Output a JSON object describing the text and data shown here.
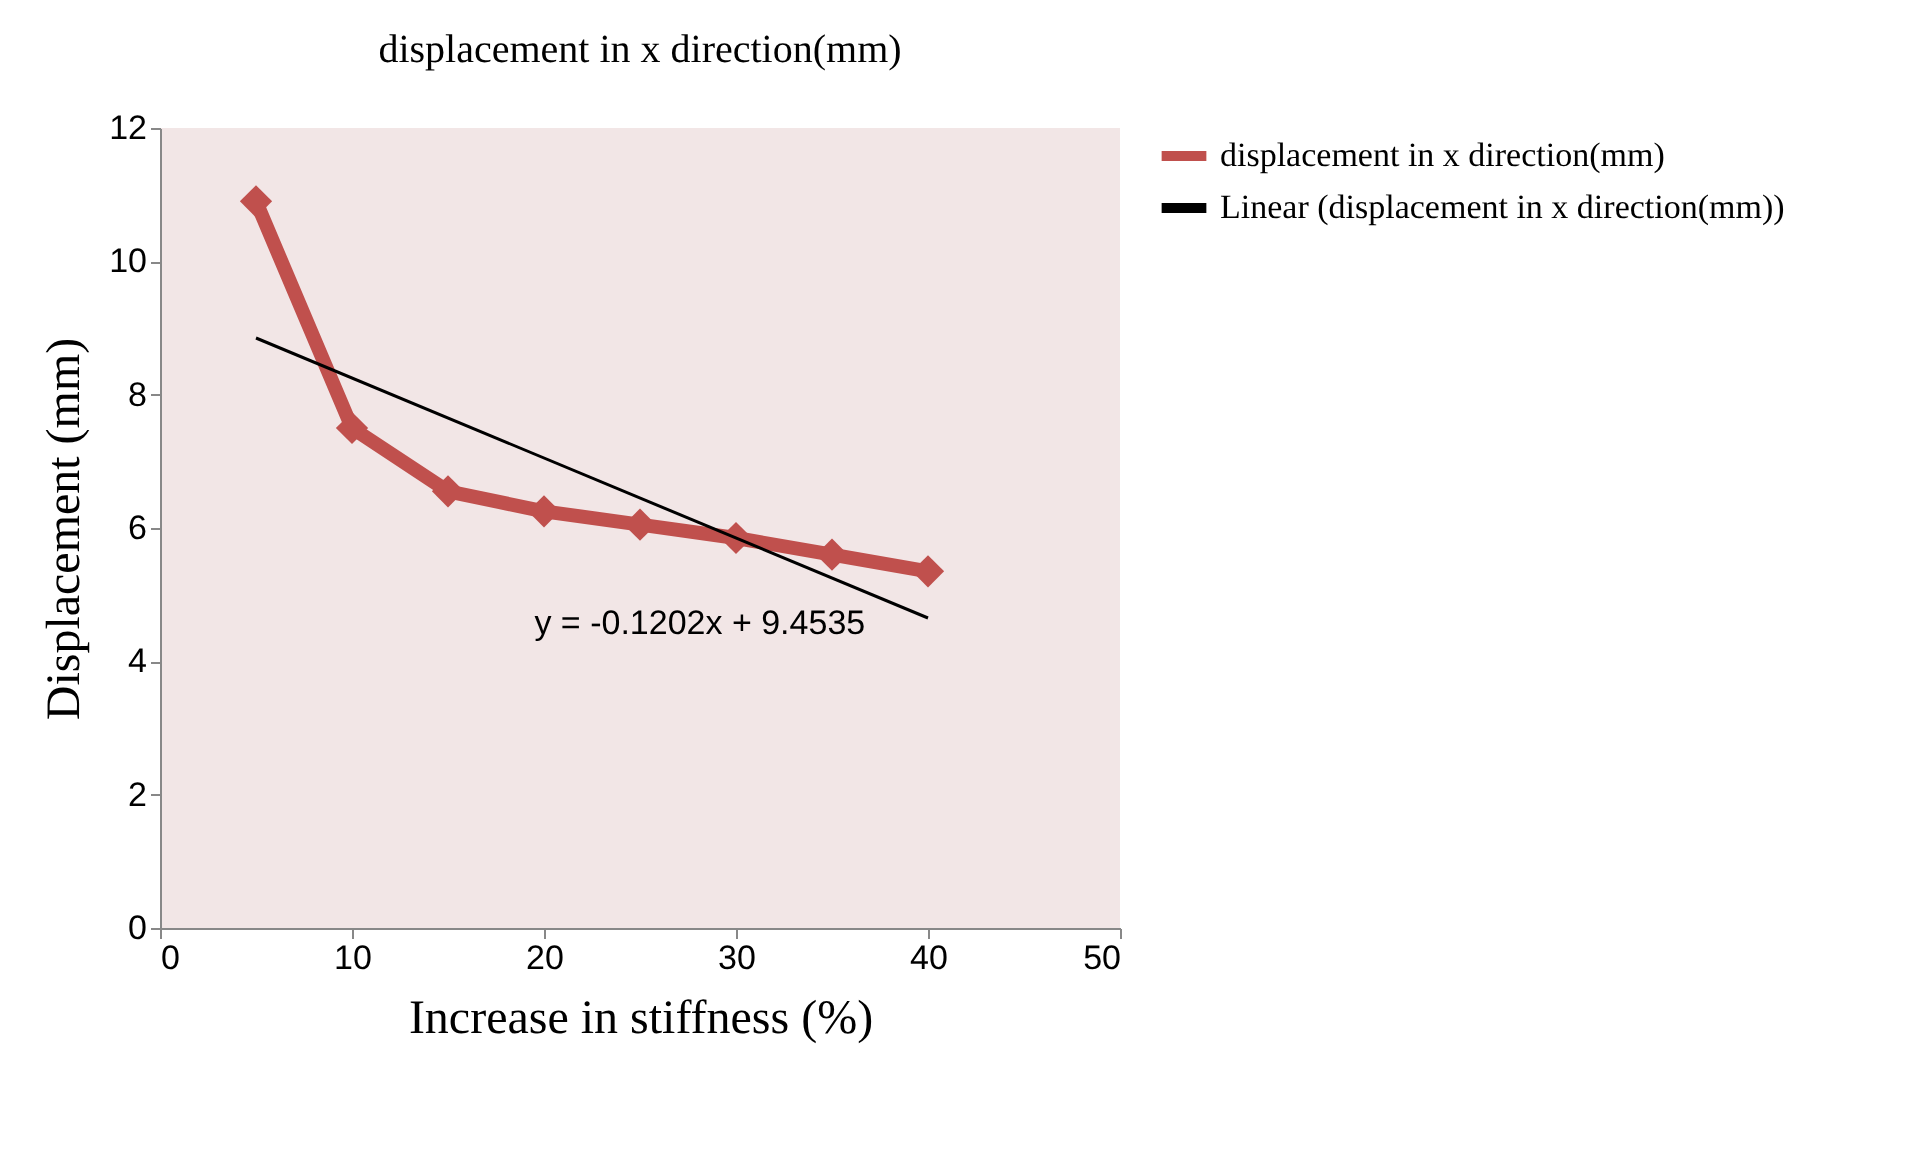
{
  "chart_data": {
    "type": "line",
    "title": "displacement in x direction(mm)",
    "xlabel": "Increase in stiffness (%)",
    "ylabel": "Displacement (mm)",
    "x": [
      5,
      10,
      15,
      20,
      25,
      30,
      35,
      40
    ],
    "series": [
      {
        "name": "displacement in x direction(mm)",
        "color": "#c0504d",
        "values": [
          10.9,
          7.5,
          6.55,
          6.25,
          6.05,
          5.85,
          5.6,
          5.35
        ],
        "marker": "diamond"
      },
      {
        "name": "Linear (displacement in x direction(mm))",
        "color": "#000000",
        "x": [
          5,
          40
        ],
        "values": [
          8.85,
          4.65
        ],
        "marker": "none"
      }
    ],
    "xlim": [
      0,
      50
    ],
    "xticks": [
      0,
      10,
      20,
      30,
      40,
      50
    ],
    "ylim": [
      0,
      12
    ],
    "yticks": [
      0,
      2,
      4,
      6,
      8,
      10,
      12
    ],
    "annotations": [
      "y = -0.1202x + 9.4535"
    ],
    "legend": "right",
    "grid": false,
    "line_style": "solid"
  }
}
